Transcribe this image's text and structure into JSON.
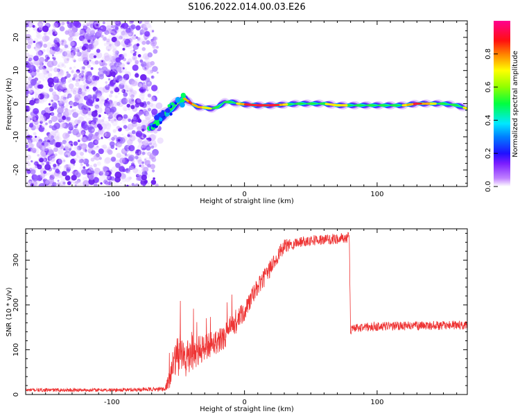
{
  "figure": {
    "title": "S106.2022.014.00.03.E26"
  },
  "chart_data": [
    {
      "type": "heatmap",
      "title": "S106.2022.014.00.03.E26",
      "xlabel": "Height of straight line (km)",
      "ylabel": "Frequency (Hz)",
      "xlim": [
        -165,
        168
      ],
      "ylim": [
        -25,
        25
      ],
      "x_ticks": [
        -100,
        0,
        100
      ],
      "y_ticks": [
        -20,
        -10,
        0,
        10,
        20
      ],
      "colorbar": {
        "label": "Normalized spectral amplitude",
        "range": [
          0,
          1
        ],
        "ticks": [
          "0.0",
          "0.2",
          "0.4",
          "0.6",
          "0.8"
        ],
        "colors": [
          "#ffffff",
          "#9a1cff",
          "#0018ff",
          "#00e0ff",
          "#00ff20",
          "#ffff00",
          "#ff2020",
          "#ff0080"
        ]
      },
      "noise_region_x": [
        -165,
        -67
      ],
      "ridge": {
        "x": [
          -70,
          -65,
          -60,
          -55,
          -50,
          -45,
          -40,
          -35,
          -30,
          -25,
          -20,
          -15,
          -10,
          -5,
          0,
          10,
          20,
          30,
          40,
          50,
          60,
          70,
          80,
          90,
          100,
          110,
          120,
          130,
          140,
          150,
          160,
          168
        ],
        "frequency": [
          -7,
          -5,
          -3,
          -1.5,
          0.5,
          1.5,
          0,
          -1,
          -1.2,
          -1.5,
          -1,
          0.5,
          0.5,
          0,
          -0.2,
          -0.5,
          -0.5,
          -0.3,
          0,
          0,
          0,
          -0.5,
          -0.5,
          -0.5,
          -0.5,
          -0.5,
          -0.5,
          0,
          0,
          0,
          -0.5,
          -1.5
        ]
      }
    },
    {
      "type": "line",
      "xlabel": "Height of straight line (km)",
      "ylabel": "SNR (10 * v/v)",
      "xlim": [
        -165,
        168
      ],
      "ylim": [
        0,
        370
      ],
      "x_ticks": [
        -100,
        0,
        100
      ],
      "y_ticks": [
        0,
        100,
        200,
        300
      ],
      "series": [
        {
          "color": "#ee3333",
          "x": [
            -165,
            -100,
            -60,
            -55,
            -50,
            -45,
            -40,
            -35,
            -30,
            -25,
            -20,
            -15,
            -10,
            -5,
            0,
            5,
            10,
            15,
            20,
            25,
            30,
            40,
            50,
            60,
            70,
            79,
            80,
            81,
            90,
            100,
            120,
            140,
            168
          ],
          "y": [
            10,
            10,
            12,
            50,
            90,
            80,
            85,
            95,
            105,
            115,
            120,
            130,
            150,
            165,
            185,
            215,
            240,
            260,
            285,
            310,
            330,
            340,
            345,
            345,
            348,
            350,
            140,
            148,
            150,
            152,
            153,
            154,
            155
          ],
          "noise": [
            4,
            4,
            5,
            35,
            55,
            45,
            40,
            35,
            30,
            30,
            28,
            28,
            28,
            26,
            24,
            22,
            20,
            20,
            20,
            18,
            16,
            12,
            12,
            12,
            12,
            12,
            10,
            10,
            10,
            10,
            10,
            10,
            10
          ]
        }
      ]
    }
  ]
}
